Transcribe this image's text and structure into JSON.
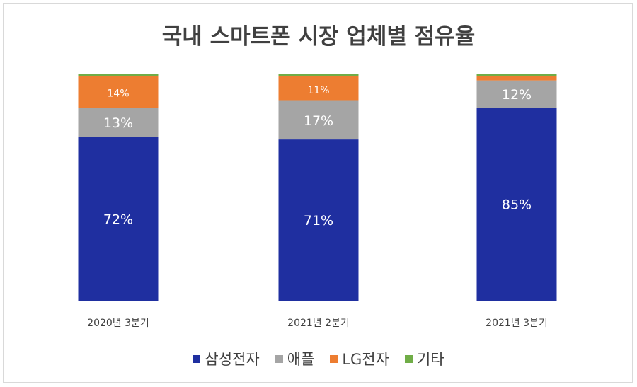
{
  "chart_data": {
    "type": "bar",
    "stacked": true,
    "title": "국내 스마트폰 시장 업체별 점유율",
    "xlabel": "",
    "ylabel": "",
    "ylim": [
      0,
      100
    ],
    "grid": false,
    "legend_position": "bottom",
    "categories": [
      "2020년 3분기",
      "2021년 2분기",
      "2021년 3분기"
    ],
    "series": [
      {
        "name": "삼성전자",
        "color": "#1f2fa0",
        "values": [
          72,
          71,
          85
        ],
        "labels": [
          "72%",
          "71%",
          "85%"
        ]
      },
      {
        "name": "애플",
        "color": "#a5a5a5",
        "values": [
          13,
          17,
          12
        ],
        "labels": [
          "13%",
          "17%",
          "12%"
        ]
      },
      {
        "name": "LG전자",
        "color": "#ed7d31",
        "values": [
          14,
          11,
          2
        ],
        "labels": [
          "14%",
          "11%",
          ""
        ]
      },
      {
        "name": "기타",
        "color": "#70ad47",
        "values": [
          1,
          1,
          1
        ],
        "labels": [
          "",
          "",
          ""
        ]
      }
    ]
  }
}
